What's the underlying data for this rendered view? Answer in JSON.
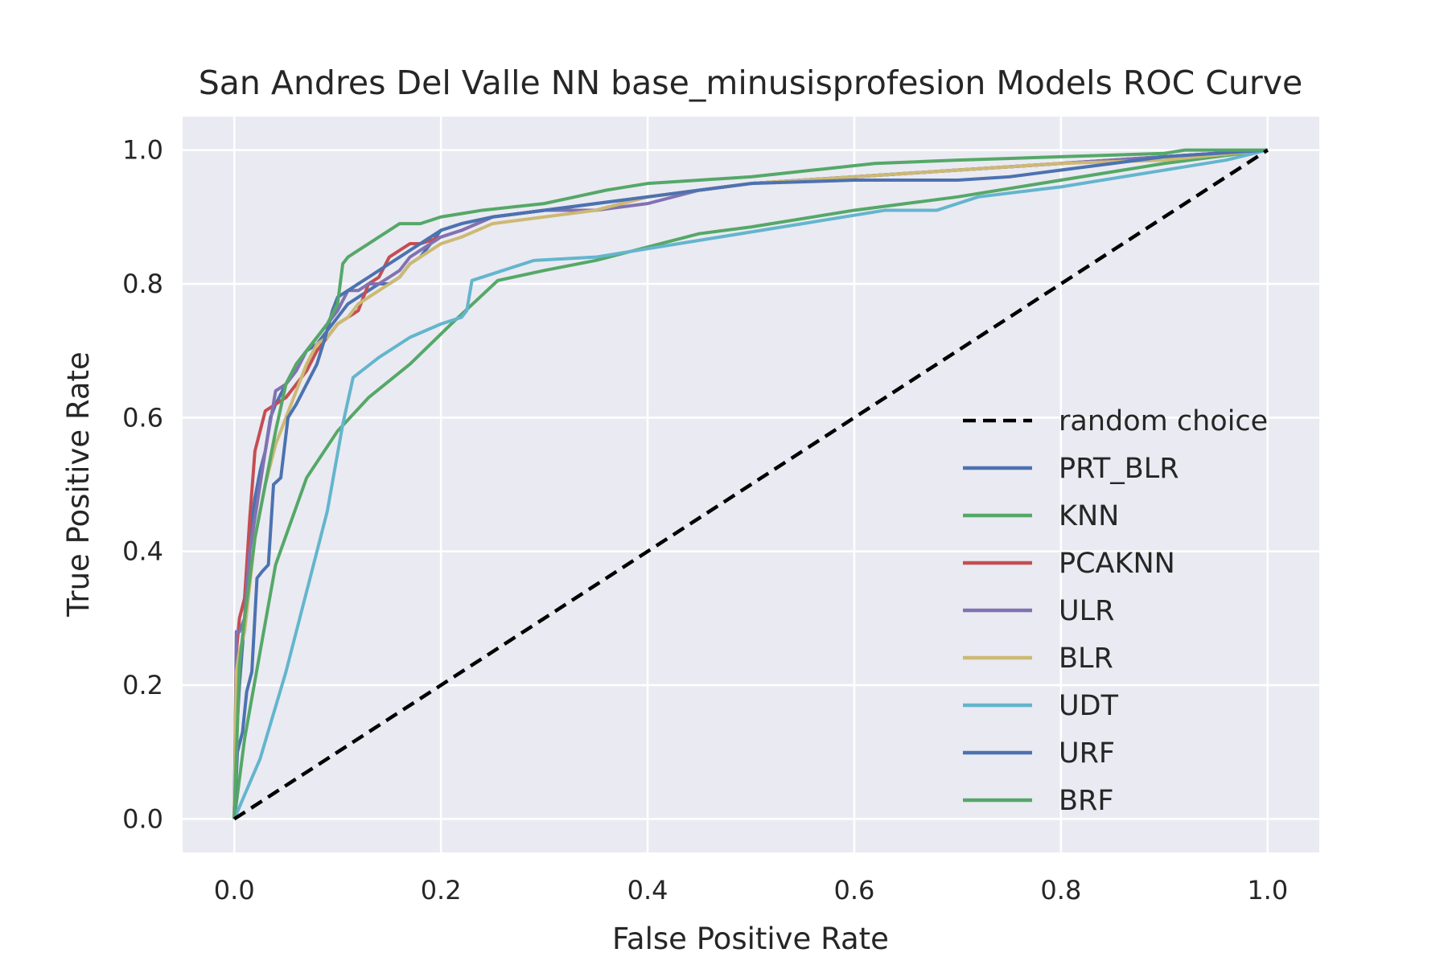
{
  "chart_data": {
    "type": "line",
    "title": "San Andres Del Valle NN base_minusisprofesion Models ROC Curve",
    "xlabel": "False Positive Rate",
    "ylabel": "True Positive Rate",
    "xlim": [
      -0.05,
      1.05
    ],
    "ylim": [
      -0.05,
      1.05
    ],
    "xticks": [
      "0.0",
      "0.2",
      "0.4",
      "0.6",
      "0.8",
      "1.0"
    ],
    "yticks": [
      "0.0",
      "0.2",
      "0.4",
      "0.6",
      "0.8",
      "1.0"
    ],
    "grid": true,
    "legend_position": "lower-right",
    "background": "#eaeaf2",
    "series": [
      {
        "name": "random choice",
        "color": "#000000",
        "dash": true,
        "x": [
          0,
          1
        ],
        "y": [
          0,
          1
        ]
      },
      {
        "name": "PRT_BLR",
        "color": "#4c72b0",
        "x": [
          0,
          0.002,
          0.005,
          0.01,
          0.015,
          0.02,
          0.025,
          0.03,
          0.035,
          0.04,
          0.05,
          0.06,
          0.07,
          0.08,
          0.09,
          0.1,
          0.11,
          0.12,
          0.13,
          0.14,
          0.15,
          0.16,
          0.17,
          0.18,
          0.19,
          0.2,
          0.22,
          0.25,
          0.3,
          0.35,
          0.4,
          0.45,
          0.5,
          0.6,
          0.7,
          0.8,
          0.9,
          0.95,
          1
        ],
        "y": [
          0,
          0.12,
          0.2,
          0.3,
          0.42,
          0.48,
          0.52,
          0.55,
          0.6,
          0.62,
          0.65,
          0.68,
          0.7,
          0.71,
          0.73,
          0.75,
          0.77,
          0.78,
          0.79,
          0.8,
          0.8,
          0.81,
          0.83,
          0.84,
          0.86,
          0.88,
          0.89,
          0.9,
          0.91,
          0.92,
          0.93,
          0.94,
          0.95,
          0.96,
          0.97,
          0.98,
          0.99,
          0.995,
          1
        ]
      },
      {
        "name": "KNN",
        "color": "#55a868",
        "x": [
          0,
          0.01,
          0.025,
          0.04,
          0.07,
          0.1,
          0.13,
          0.17,
          0.21,
          0.255,
          0.3,
          0.35,
          0.4,
          0.45,
          0.5,
          0.6,
          0.7,
          0.8,
          0.9,
          1
        ],
        "y": [
          0,
          0.12,
          0.25,
          0.38,
          0.51,
          0.58,
          0.63,
          0.68,
          0.74,
          0.805,
          0.82,
          0.835,
          0.855,
          0.875,
          0.885,
          0.91,
          0.93,
          0.955,
          0.98,
          1
        ]
      },
      {
        "name": "PCAKNN",
        "color": "#c44e52",
        "x": [
          0,
          0.002,
          0.005,
          0.01,
          0.015,
          0.02,
          0.025,
          0.03,
          0.04,
          0.05,
          0.06,
          0.07,
          0.08,
          0.09,
          0.1,
          0.11,
          0.12,
          0.13,
          0.14,
          0.15,
          0.16,
          0.17,
          0.18,
          0.2,
          0.22,
          0.25,
          0.3,
          0.35,
          0.4,
          0.45,
          0.5,
          0.6,
          0.7,
          0.8,
          0.9,
          1
        ],
        "y": [
          0,
          0.25,
          0.3,
          0.33,
          0.45,
          0.55,
          0.58,
          0.61,
          0.62,
          0.63,
          0.65,
          0.67,
          0.7,
          0.72,
          0.74,
          0.75,
          0.76,
          0.8,
          0.81,
          0.84,
          0.85,
          0.86,
          0.86,
          0.87,
          0.88,
          0.9,
          0.91,
          0.91,
          0.93,
          0.94,
          0.95,
          0.96,
          0.97,
          0.98,
          0.99,
          1
        ]
      },
      {
        "name": "ULR",
        "color": "#8172b2",
        "x": [
          0,
          0.002,
          0.005,
          0.01,
          0.015,
          0.02,
          0.03,
          0.04,
          0.05,
          0.06,
          0.07,
          0.08,
          0.09,
          0.1,
          0.11,
          0.12,
          0.13,
          0.14,
          0.15,
          0.16,
          0.17,
          0.18,
          0.2,
          0.22,
          0.25,
          0.3,
          0.35,
          0.4,
          0.45,
          0.5,
          0.6,
          0.7,
          0.8,
          0.9,
          1
        ],
        "y": [
          0,
          0.28,
          0.28,
          0.3,
          0.4,
          0.45,
          0.55,
          0.64,
          0.65,
          0.67,
          0.7,
          0.72,
          0.74,
          0.76,
          0.79,
          0.79,
          0.8,
          0.8,
          0.81,
          0.82,
          0.84,
          0.85,
          0.87,
          0.88,
          0.9,
          0.91,
          0.91,
          0.92,
          0.94,
          0.95,
          0.96,
          0.97,
          0.98,
          0.99,
          1
        ]
      },
      {
        "name": "BLR",
        "color": "#ccb974",
        "x": [
          0,
          0.002,
          0.005,
          0.01,
          0.015,
          0.02,
          0.03,
          0.04,
          0.05,
          0.06,
          0.07,
          0.08,
          0.09,
          0.1,
          0.11,
          0.12,
          0.13,
          0.14,
          0.15,
          0.16,
          0.17,
          0.18,
          0.2,
          0.22,
          0.25,
          0.3,
          0.35,
          0.4,
          0.45,
          0.5,
          0.6,
          0.7,
          0.8,
          0.9,
          1
        ],
        "y": [
          0,
          0.22,
          0.25,
          0.28,
          0.35,
          0.42,
          0.5,
          0.56,
          0.6,
          0.64,
          0.68,
          0.71,
          0.72,
          0.74,
          0.75,
          0.77,
          0.78,
          0.79,
          0.8,
          0.81,
          0.83,
          0.84,
          0.86,
          0.87,
          0.89,
          0.9,
          0.91,
          0.93,
          0.94,
          0.95,
          0.96,
          0.97,
          0.98,
          0.985,
          1
        ]
      },
      {
        "name": "UDT",
        "color": "#64b5cd",
        "x": [
          0,
          0.025,
          0.05,
          0.07,
          0.09,
          0.105,
          0.115,
          0.14,
          0.17,
          0.2,
          0.22,
          0.225,
          0.23,
          0.26,
          0.29,
          0.35,
          0.45,
          0.55,
          0.63,
          0.68,
          0.72,
          0.8,
          0.9,
          0.96,
          1
        ],
        "y": [
          0,
          0.09,
          0.22,
          0.34,
          0.46,
          0.59,
          0.66,
          0.69,
          0.72,
          0.74,
          0.75,
          0.76,
          0.805,
          0.82,
          0.835,
          0.84,
          0.865,
          0.89,
          0.91,
          0.91,
          0.93,
          0.945,
          0.97,
          0.985,
          1
        ]
      },
      {
        "name": "URF",
        "color": "#4c72b0",
        "x": [
          0,
          0.003,
          0.008,
          0.012,
          0.017,
          0.022,
          0.027,
          0.033,
          0.038,
          0.045,
          0.052,
          0.06,
          0.07,
          0.08,
          0.088,
          0.095,
          0.1,
          0.11,
          0.12,
          0.13,
          0.14,
          0.15,
          0.16,
          0.17,
          0.18,
          0.19,
          0.2,
          0.22,
          0.25,
          0.3,
          0.35,
          0.4,
          0.5,
          0.6,
          0.7,
          0.75,
          0.8,
          0.85,
          0.9,
          0.95,
          1
        ],
        "y": [
          0,
          0.1,
          0.13,
          0.19,
          0.22,
          0.36,
          0.37,
          0.38,
          0.5,
          0.51,
          0.6,
          0.62,
          0.65,
          0.68,
          0.72,
          0.76,
          0.78,
          0.79,
          0.8,
          0.81,
          0.82,
          0.83,
          0.84,
          0.85,
          0.86,
          0.87,
          0.88,
          0.89,
          0.9,
          0.91,
          0.92,
          0.93,
          0.95,
          0.955,
          0.955,
          0.96,
          0.97,
          0.98,
          0.99,
          0.995,
          1
        ]
      },
      {
        "name": "BRF",
        "color": "#55a868",
        "x": [
          0,
          0.005,
          0.01,
          0.02,
          0.03,
          0.04,
          0.05,
          0.06,
          0.07,
          0.08,
          0.09,
          0.1,
          0.105,
          0.11,
          0.12,
          0.13,
          0.14,
          0.15,
          0.16,
          0.18,
          0.2,
          0.22,
          0.24,
          0.27,
          0.3,
          0.33,
          0.36,
          0.4,
          0.45,
          0.5,
          0.56,
          0.62,
          0.7,
          0.8,
          0.9,
          0.92,
          1
        ],
        "y": [
          0,
          0.23,
          0.3,
          0.42,
          0.5,
          0.58,
          0.65,
          0.68,
          0.7,
          0.72,
          0.74,
          0.77,
          0.83,
          0.84,
          0.85,
          0.86,
          0.87,
          0.88,
          0.89,
          0.89,
          0.9,
          0.905,
          0.91,
          0.915,
          0.92,
          0.93,
          0.94,
          0.95,
          0.955,
          0.96,
          0.97,
          0.98,
          0.985,
          0.99,
          0.995,
          1,
          1
        ]
      }
    ]
  }
}
